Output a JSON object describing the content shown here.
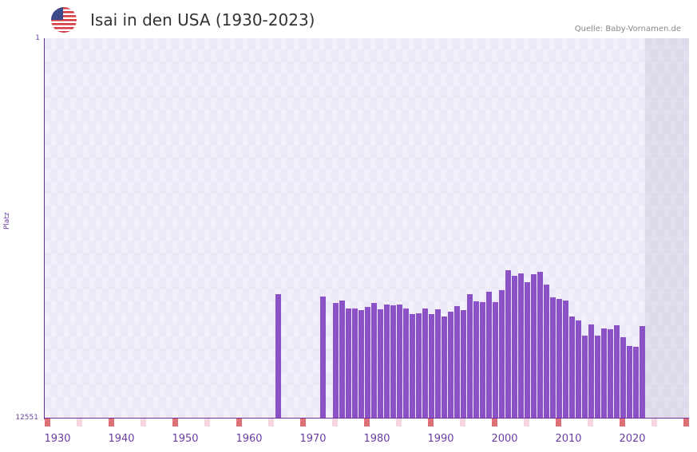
{
  "header": {
    "title": "Isai in den USA (1930-2023)",
    "source": "Quelle: Baby-Vornamen.de",
    "flag_icon": "usa-flag-icon"
  },
  "colors": {
    "bar": "#8a52c6",
    "axis": "#6b2fa0",
    "grid_bg": "#ede9f8",
    "decade_marker": "#e07078",
    "half_decade_marker": "#f5d5de"
  },
  "chart_data": {
    "type": "bar",
    "title": "Isai in den USA (1930-2023)",
    "xlabel": "",
    "ylabel": "Platz",
    "y_axis_inverted": true,
    "ylim": [
      12551,
      1
    ],
    "y_ticks": [
      "1",
      "12551"
    ],
    "x_ticks": [
      "1930",
      "1940",
      "1950",
      "1960",
      "1970",
      "1980",
      "1990",
      "2000",
      "2010",
      "2020"
    ],
    "xlim": [
      1928,
      2028
    ],
    "grid": true,
    "legend": null,
    "x": [
      1964,
      1971,
      1973,
      1974,
      1975,
      1976,
      1977,
      1978,
      1979,
      1980,
      1981,
      1982,
      1983,
      1984,
      1985,
      1986,
      1987,
      1988,
      1989,
      1990,
      1991,
      1992,
      1993,
      1994,
      1995,
      1996,
      1997,
      1998,
      1999,
      2000,
      2001,
      2002,
      2003,
      2004,
      2005,
      2006,
      2007,
      2008,
      2009,
      2010,
      2011,
      2012,
      2013,
      2014,
      2015,
      2016,
      2017,
      2018,
      2019,
      2020,
      2021
    ],
    "values": [
      8451,
      8530,
      8741,
      8662,
      8925,
      8925,
      8978,
      8873,
      8741,
      8952,
      8794,
      8820,
      8794,
      8925,
      9110,
      9084,
      8925,
      9110,
      8952,
      9189,
      9031,
      8847,
      8978,
      8451,
      8688,
      8715,
      8372,
      8715,
      8320,
      7663,
      7847,
      7768,
      8057,
      7794,
      7715,
      8136,
      8557,
      8609,
      8662,
      9189,
      9321,
      9821,
      9452,
      9821,
      9584,
      9610,
      9479,
      9873,
      10162,
      10189,
      9505
    ]
  }
}
